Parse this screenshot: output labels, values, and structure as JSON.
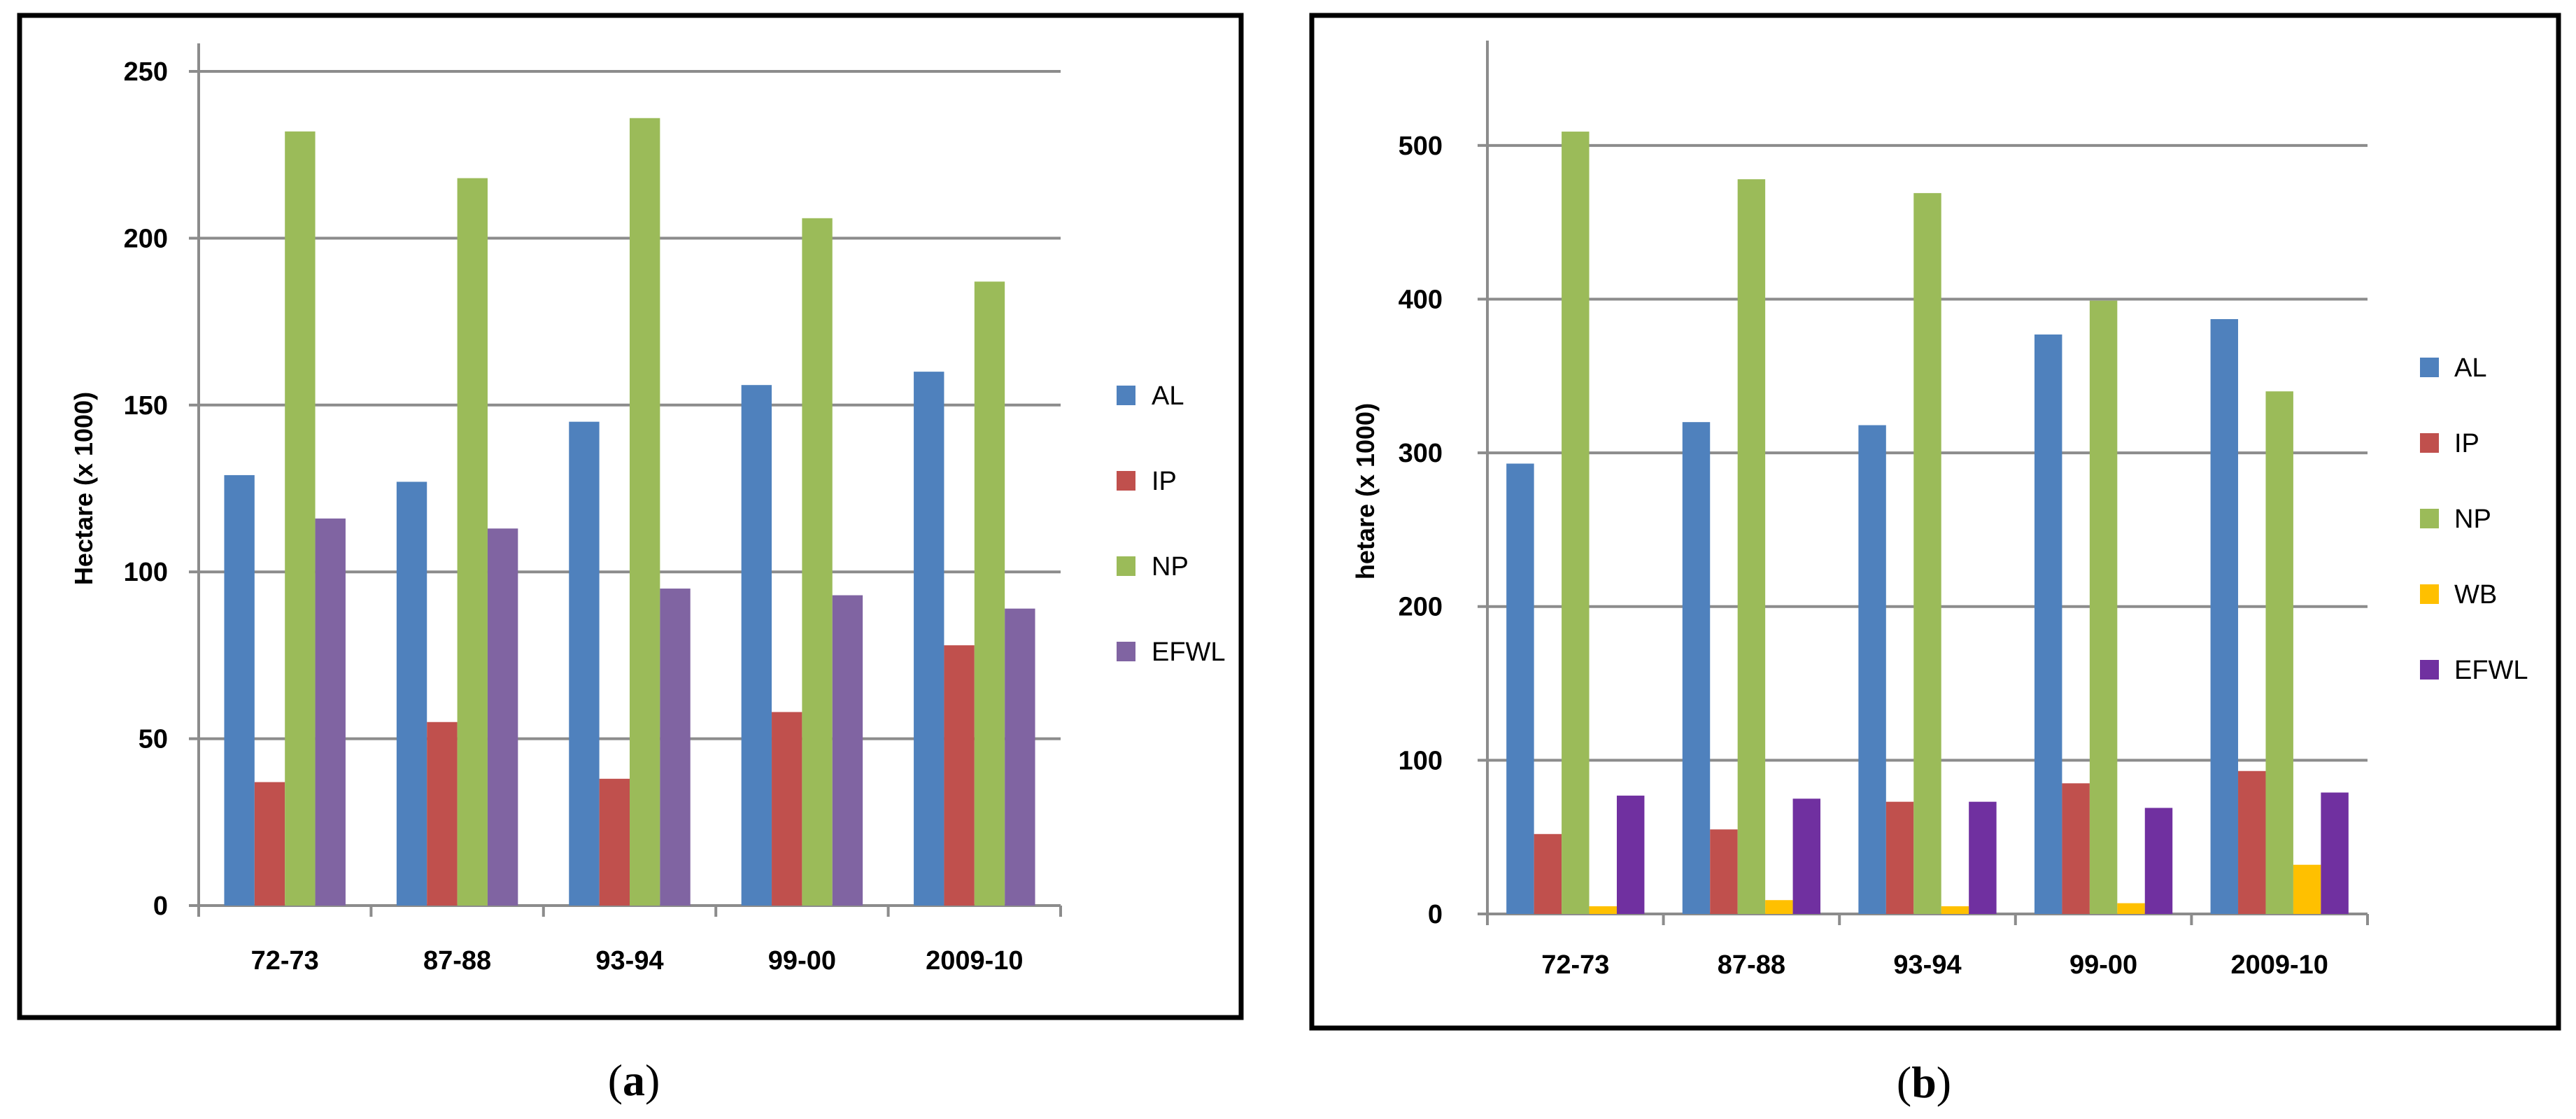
{
  "chart_data": [
    {
      "type": "bar",
      "caption": {
        "open": "(",
        "letter": "a",
        "close": ")"
      },
      "title": "",
      "xlabel": "",
      "ylabel": "Hectare (x 1000)",
      "ylim": [
        0,
        250
      ],
      "yticks": [
        0,
        50,
        100,
        150,
        200,
        250
      ],
      "categories": [
        "72-73",
        "87-88",
        "93-94",
        "99-00",
        "2009-10"
      ],
      "legend_position": "right",
      "series": [
        {
          "name": "AL",
          "color": "#4f81bd",
          "values": [
            129,
            127,
            145,
            156,
            160
          ]
        },
        {
          "name": "IP",
          "color": "#c0504d",
          "values": [
            37,
            55,
            38,
            58,
            78
          ]
        },
        {
          "name": "NP",
          "color": "#9bbb59",
          "values": [
            232,
            218,
            236,
            206,
            187
          ]
        },
        {
          "name": "EFWL",
          "color": "#8064a2",
          "values": [
            116,
            113,
            95,
            93,
            89
          ]
        }
      ]
    },
    {
      "type": "bar",
      "caption": {
        "open": "(",
        "letter": "b",
        "close": ")"
      },
      "title": "",
      "xlabel": "",
      "ylabel": "hetare (x 1000)",
      "ylim": [
        0,
        550
      ],
      "yticks": [
        0,
        100,
        200,
        300,
        400,
        500
      ],
      "categories": [
        "72-73",
        "87-88",
        "93-94",
        "99-00",
        "2009-10"
      ],
      "legend_position": "right",
      "series": [
        {
          "name": "AL",
          "color": "#4f81bd",
          "values": [
            293,
            320,
            318,
            377,
            387
          ]
        },
        {
          "name": "IP",
          "color": "#c0504d",
          "values": [
            52,
            55,
            73,
            85,
            93
          ]
        },
        {
          "name": "NP",
          "color": "#9bbb59",
          "values": [
            509,
            478,
            469,
            399,
            340
          ]
        },
        {
          "name": "WB",
          "color": "#ffc000",
          "values": [
            5,
            9,
            5,
            7,
            32
          ]
        },
        {
          "name": "EFWL",
          "color": "#7030a0",
          "values": [
            77,
            75,
            73,
            69,
            79
          ]
        }
      ]
    }
  ]
}
